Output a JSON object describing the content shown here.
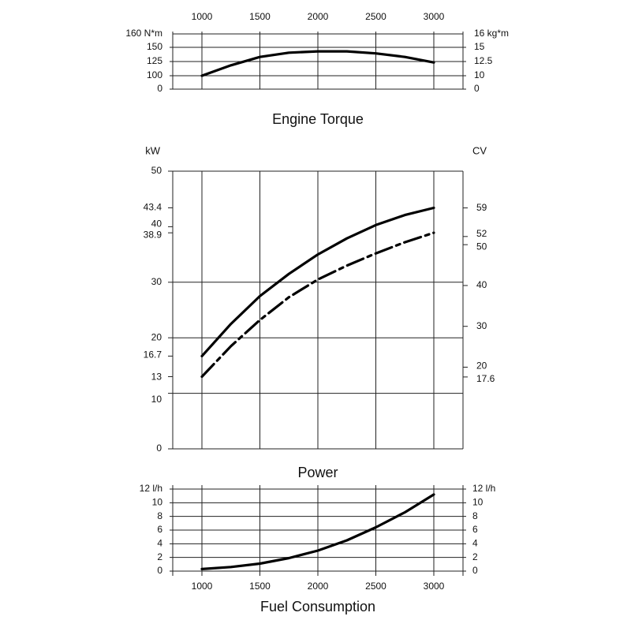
{
  "chart_data": [
    {
      "type": "line",
      "title": "Engine Torque",
      "x_ticks": [
        "1000",
        "1500",
        "2000",
        "2500",
        "3000"
      ],
      "xlim": [
        1000,
        3000
      ],
      "left_axis": {
        "tick_labels": [
          "160 N*m",
          "150",
          "125",
          "100",
          "0"
        ],
        "ticks": [
          160,
          150,
          125,
          100,
          0
        ]
      },
      "right_axis": {
        "tick_labels": [
          "16 kg*m",
          "15",
          "12.5",
          "10",
          "0"
        ],
        "ticks": [
          16,
          15,
          12.5,
          10,
          0
        ]
      },
      "grid": true,
      "series": [
        {
          "style": "solid",
          "color": "#000000",
          "x": [
            1000,
            1250,
            1500,
            1750,
            2000,
            2250,
            2500,
            2750,
            3000
          ],
          "y": [
            100,
            115,
            127,
            133,
            135,
            135,
            132,
            127,
            119
          ]
        }
      ]
    },
    {
      "type": "line",
      "title": "Power",
      "xlim": [
        1000,
        3000
      ],
      "left_axis": {
        "unit": "kW",
        "tick_labels": [
          "50",
          "43.4",
          "40",
          "38.9",
          "30",
          "20",
          "16.7",
          "13",
          "10",
          "0"
        ],
        "ticks": [
          50,
          43.4,
          40,
          38.9,
          30,
          20,
          16.7,
          13,
          10,
          0
        ],
        "ylim": [
          0,
          50
        ]
      },
      "right_axis": {
        "unit": "CV",
        "tick_labels": [
          "59",
          "52",
          "50",
          "40",
          "30",
          "20",
          "17.6"
        ],
        "ticks": [
          59,
          52,
          50,
          40,
          30,
          20,
          17.6
        ],
        "ylim": [
          0,
          68
        ]
      },
      "grid": true,
      "series": [
        {
          "style": "solid",
          "color": "#000000",
          "x": [
            1000,
            1250,
            1500,
            1750,
            2000,
            2250,
            2500,
            2750,
            3000
          ],
          "y": [
            16.7,
            22.5,
            27.5,
            31.5,
            35.0,
            37.9,
            40.3,
            42.1,
            43.4
          ]
        },
        {
          "style": "dash-dot",
          "color": "#000000",
          "x": [
            1000,
            1250,
            1500,
            1750,
            2000,
            2250,
            2500,
            2750,
            3000
          ],
          "y": [
            13.0,
            18.5,
            23.2,
            27.3,
            30.5,
            33.0,
            35.2,
            37.2,
            38.9
          ]
        }
      ]
    },
    {
      "type": "line",
      "title": "Fuel Consumption",
      "x_ticks": [
        "1000",
        "1500",
        "2000",
        "2500",
        "3000"
      ],
      "xlim": [
        1000,
        3000
      ],
      "left_axis": {
        "tick_labels": [
          "12 l/h",
          "10",
          "8",
          "6",
          "4",
          "2",
          "0"
        ],
        "ticks": [
          12,
          10,
          8,
          6,
          4,
          2,
          0
        ],
        "ylim": [
          0,
          12
        ]
      },
      "right_axis": {
        "tick_labels": [
          "12 l/h",
          "10",
          "8",
          "6",
          "4",
          "2",
          "0"
        ],
        "ticks": [
          12,
          10,
          8,
          6,
          4,
          2,
          0
        ],
        "ylim": [
          0,
          12
        ]
      },
      "grid": true,
      "series": [
        {
          "style": "solid",
          "color": "#000000",
          "x": [
            1000,
            1250,
            1500,
            1750,
            2000,
            2250,
            2500,
            2750,
            3000
          ],
          "y": [
            0.3,
            0.6,
            1.1,
            1.9,
            3.0,
            4.5,
            6.4,
            8.6,
            11.2
          ]
        }
      ]
    }
  ]
}
